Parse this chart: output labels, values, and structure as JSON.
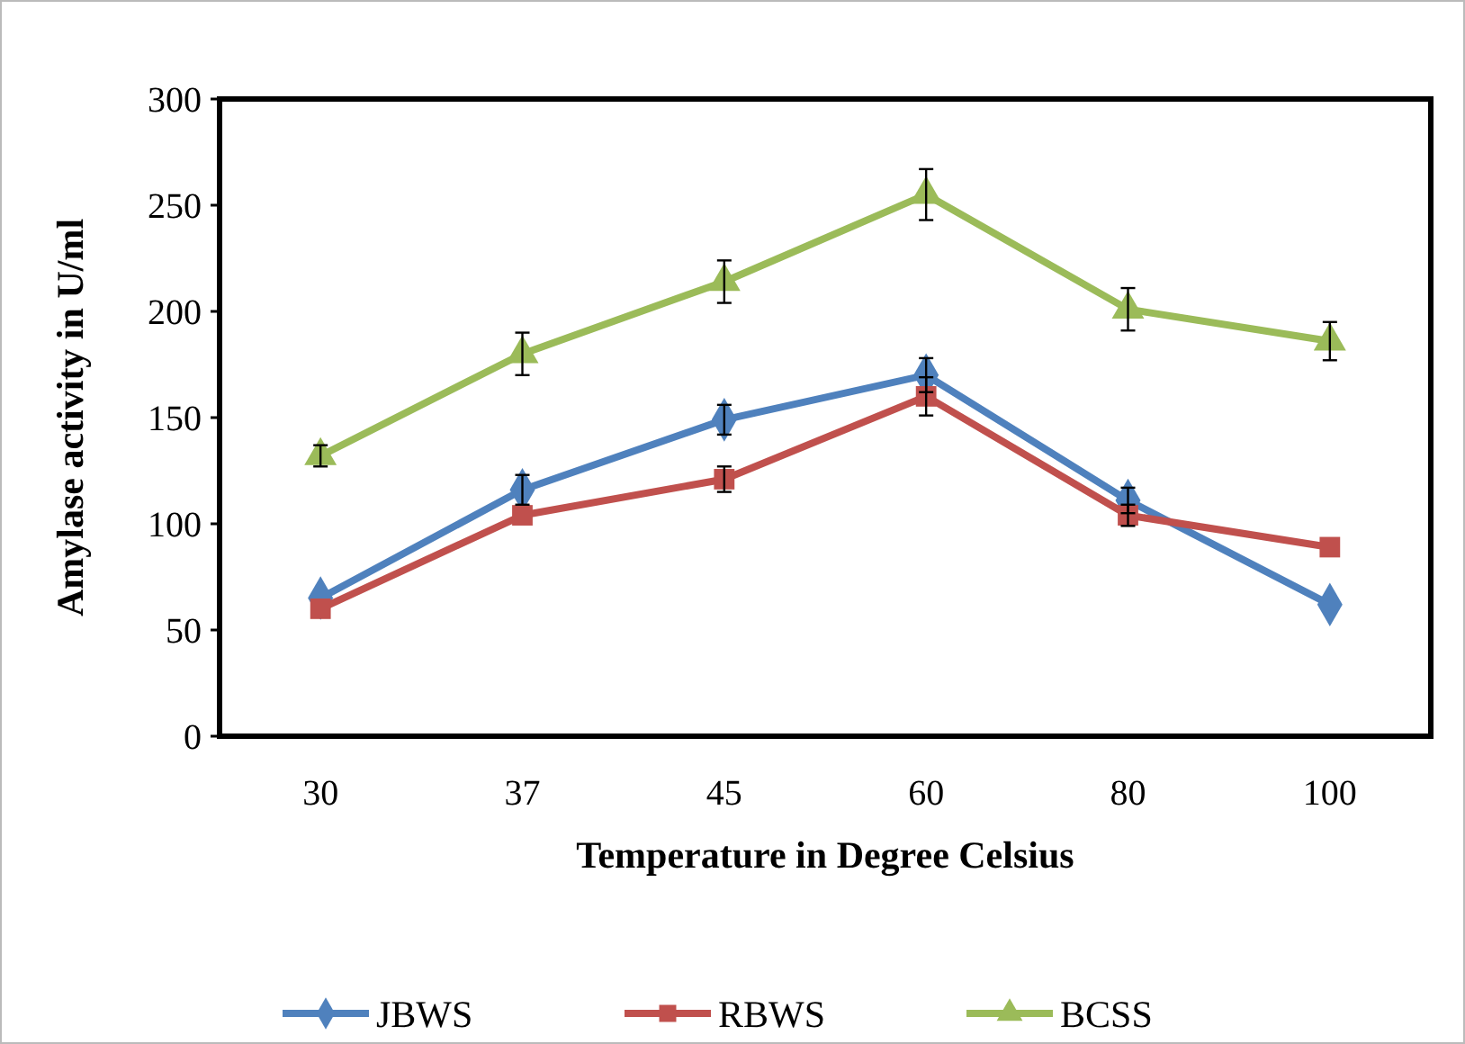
{
  "chart_data": {
    "type": "line",
    "xlabel": "Temperature in Degree Celsius",
    "ylabel": "Amylase activity in U/ml",
    "categories": [
      "30",
      "37",
      "45",
      "60",
      "80",
      "100"
    ],
    "series": [
      {
        "name": "JBWS",
        "color": "#4f81bd",
        "marker": "diamond",
        "values": [
          65,
          116,
          149,
          170,
          111,
          62
        ],
        "errors": [
          null,
          7,
          7,
          8,
          6,
          null
        ]
      },
      {
        "name": "RBWS",
        "color": "#c0504d",
        "marker": "square",
        "values": [
          60,
          104,
          121,
          160,
          104,
          89
        ],
        "errors": [
          null,
          null,
          6,
          9,
          5,
          null
        ]
      },
      {
        "name": "BCSS",
        "color": "#9bbb59",
        "marker": "triangle",
        "values": [
          132,
          180,
          214,
          255,
          201,
          186
        ],
        "errors": [
          5,
          10,
          10,
          12,
          10,
          9
        ]
      }
    ],
    "ylim": [
      0,
      300
    ],
    "yticks": [
      0,
      50,
      100,
      150,
      200,
      250,
      300
    ],
    "grid": false,
    "legend": "bottom"
  }
}
